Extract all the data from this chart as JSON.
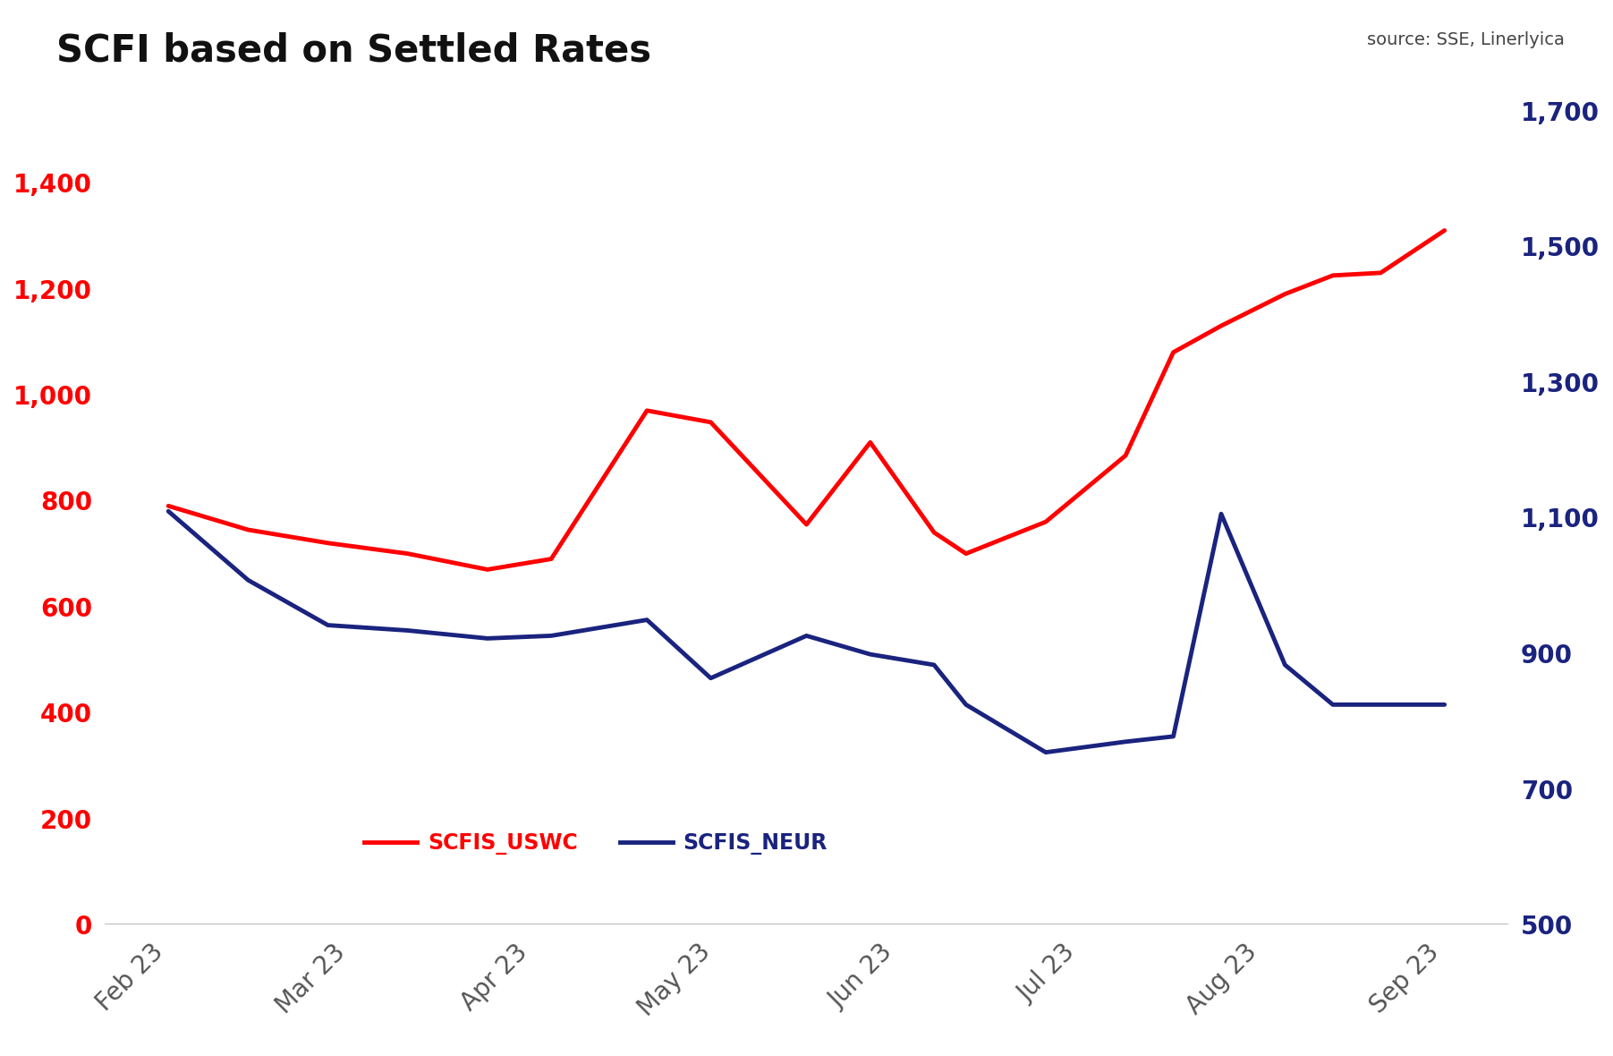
{
  "title": "SCFI based on Settled Rates",
  "source_text": "source: SSE, Linerlyica",
  "background_color": "#ffffff",
  "x_labels": [
    "Feb 23",
    "Mar 23",
    "Apr 23",
    "May 23",
    "Jun 23",
    "Jul 23",
    "Aug 23",
    "Sep 23"
  ],
  "scfis_uswc": {
    "label": "SCFIS_USWC",
    "color": "#ff0000",
    "linewidth": 3.5,
    "x": [
      0,
      0.5,
      1,
      1.5,
      2,
      2.4,
      3,
      3.4,
      4,
      4.4,
      4.8,
      5,
      5.5,
      6,
      6.3,
      6.6,
      7,
      7.3,
      7.6,
      8
    ],
    "values": [
      790,
      745,
      720,
      700,
      670,
      690,
      970,
      948,
      755,
      910,
      740,
      700,
      760,
      885,
      1080,
      1130,
      1190,
      1225,
      1230,
      1310
    ]
  },
  "scfis_neur": {
    "label": "SCFIS_NEUR",
    "color": "#1a237e",
    "linewidth": 3.5,
    "x": [
      0,
      0.5,
      1,
      1.5,
      2,
      2.4,
      3,
      3.4,
      4,
      4.4,
      4.8,
      5,
      5.5,
      6,
      6.3,
      6.6,
      7,
      7.3,
      7.6,
      8
    ],
    "values": [
      780,
      650,
      565,
      555,
      540,
      545,
      575,
      465,
      545,
      510,
      490,
      415,
      325,
      345,
      355,
      775,
      490,
      415,
      415,
      415
    ]
  },
  "left_ylim": [
    0,
    1600
  ],
  "left_yticks": [
    0,
    200,
    400,
    600,
    800,
    1000,
    1200,
    1400
  ],
  "right_ylim": [
    500,
    1750
  ],
  "right_yticks": [
    500,
    700,
    900,
    1100,
    1300,
    1500,
    1700
  ],
  "tick_label_color_left": "#ff0000",
  "tick_label_color_right": "#1a237e",
  "xtick_color": "#555555",
  "title_fontsize": 30,
  "source_fontsize": 14,
  "legend_fontsize": 17,
  "tick_fontsize": 20,
  "title_color": "#111111"
}
